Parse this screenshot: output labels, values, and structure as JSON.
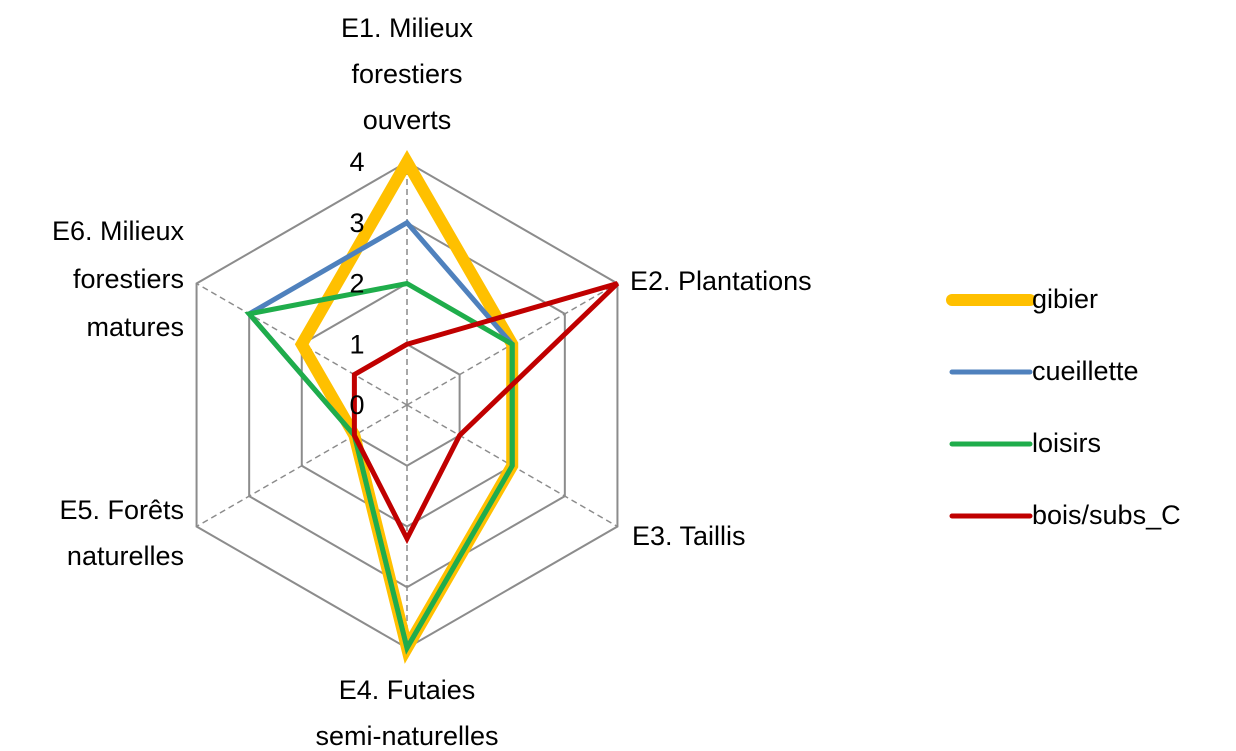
{
  "chart_data": {
    "type": "radar",
    "categories": [
      [
        "E1. Milieux",
        "forestiers",
        "ouverts"
      ],
      [
        "E2. Plantations"
      ],
      [
        "E3. Taillis"
      ],
      [
        "E4. Futaies",
        "semi-naturelles"
      ],
      [
        "E5. Forêts",
        "naturelles"
      ],
      [
        "E6. Milieux",
        "forestiers",
        "matures"
      ]
    ],
    "series": [
      {
        "name": "gibier",
        "color": "#ffc000",
        "values": [
          4,
          2,
          2,
          4,
          1,
          2
        ]
      },
      {
        "name": "cueillette",
        "color": "#4f81bd",
        "values": [
          3,
          2,
          2,
          4,
          1,
          3
        ]
      },
      {
        "name": "loisirs",
        "color": "#1fad4b",
        "values": [
          2,
          2,
          2,
          4,
          1,
          3
        ]
      },
      {
        "name": "bois/subs_C",
        "color": "#c00000",
        "values": [
          1,
          4,
          1,
          2.2,
          1,
          1
        ]
      }
    ],
    "ylim": [
      0,
      4
    ],
    "yticks": [
      0,
      1,
      2,
      3,
      4
    ],
    "legend": "right"
  }
}
